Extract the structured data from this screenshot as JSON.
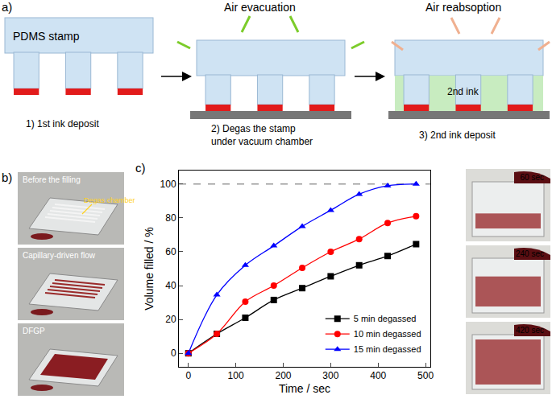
{
  "chart_data": {
    "type": "line",
    "x_label": "Time / sec",
    "y_label": "Volume filled / %",
    "x": [
      0,
      60,
      120,
      180,
      240,
      300,
      360,
      420,
      480
    ],
    "series": [
      {
        "name": "5 min degassed",
        "color": "#000000",
        "marker": "square",
        "values": [
          0,
          11.5,
          21,
          31.5,
          38.5,
          45.5,
          52,
          57.5,
          64.5
        ]
      },
      {
        "name": "10 min degassed",
        "color": "#ff0000",
        "marker": "circle",
        "values": [
          0,
          11.5,
          30.5,
          40,
          50.5,
          60,
          67.5,
          77,
          81
        ]
      },
      {
        "name": "15 min degassed",
        "color": "#0000ff",
        "marker": "triangle-up",
        "values": [
          0,
          34.5,
          52,
          63.5,
          75,
          84.5,
          94,
          99,
          100
        ]
      }
    ],
    "xlim": [
      -20,
      510
    ],
    "xticks": [
      0,
      100,
      200,
      300,
      400,
      500
    ],
    "ylim": [
      -8,
      108
    ],
    "yticks": [
      0,
      20,
      40,
      60,
      80,
      100
    ],
    "grid": false,
    "legend": "lower right"
  },
  "panel_labels": {
    "a": "a)",
    "b": "b)",
    "c": "c)"
  },
  "diagram": {
    "stamp_label": "PDMS stamp",
    "steps": [
      {
        "caption": null,
        "fill_label": null,
        "label": [
          "1) 1st ink deposit"
        ]
      },
      {
        "caption": "Air evacuation",
        "fill_label": null,
        "label": [
          "2) Degas the stamp",
          "under vacuum chamber"
        ]
      },
      {
        "caption": "Air reabsoption",
        "fill_label": "2nd ink",
        "label": [
          "3) 2nd ink deposit"
        ]
      }
    ]
  },
  "photos_b": [
    {
      "caption": "Before the filling",
      "pointer": "Degas chamber"
    },
    {
      "caption": "Capillary-driven flow",
      "pointer": null
    },
    {
      "caption": "DFGP",
      "pointer": null
    }
  ],
  "photos_c": [
    "60 sec",
    "240 sec",
    "420 sec"
  ]
}
